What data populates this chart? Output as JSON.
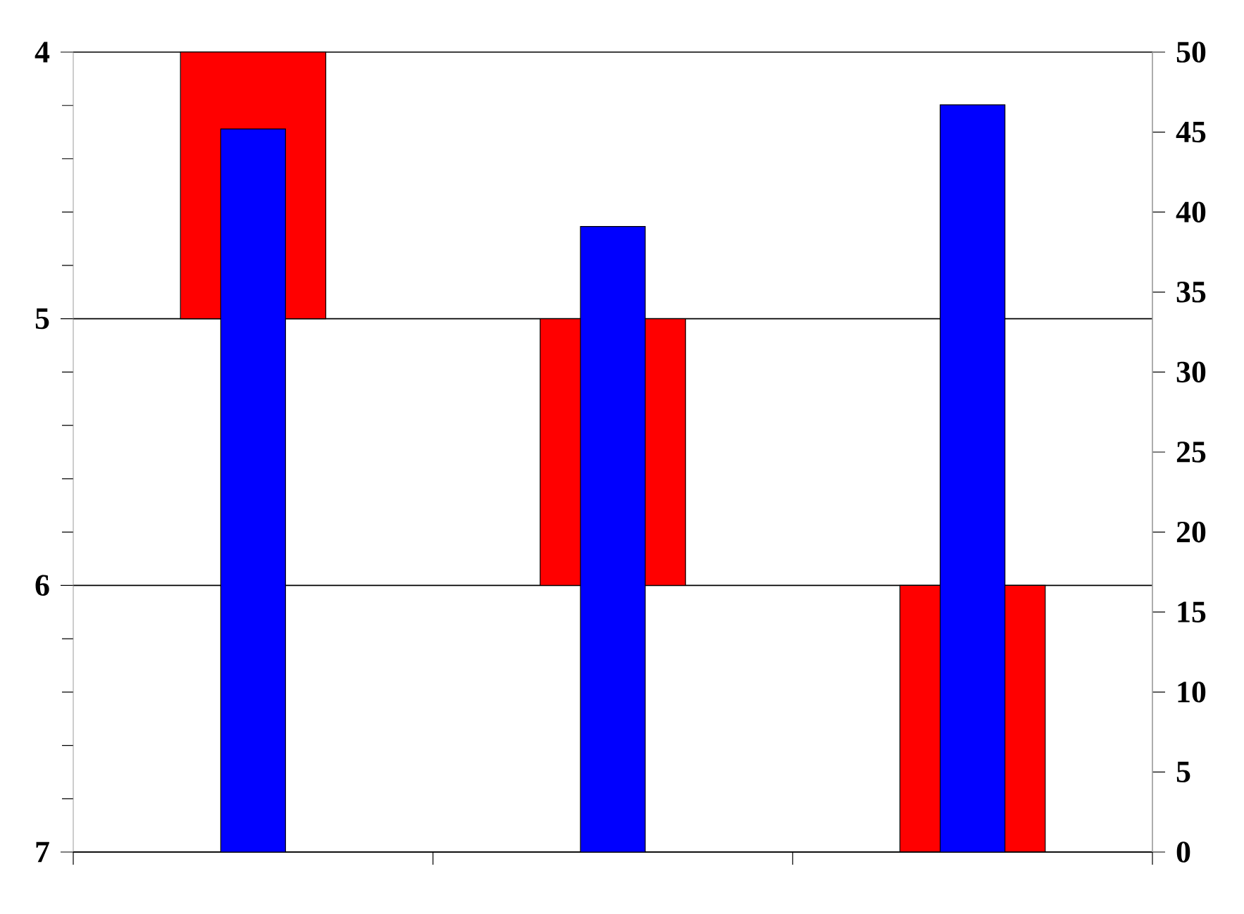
{
  "chart_data": {
    "type": "bar",
    "categories": [
      null,
      null,
      null
    ],
    "series": [
      {
        "color": "#ff0000",
        "values": [
          1,
          1,
          1
        ],
        "base": [
          4,
          5,
          6
        ]
      },
      {
        "color": "#0000ff",
        "values": [
          45.2,
          39.1,
          46.7
        ],
        "axis": "y2"
      }
    ],
    "ylim": [
      7,
      4
    ],
    "yticks": [
      4,
      {
        "value": 4.2,
        "label": null
      },
      {
        "value": 4.4,
        "label": null
      },
      {
        "value": 4.6,
        "label": null
      },
      {
        "value": 4.8,
        "label": null
      },
      5,
      {
        "value": 5.2,
        "label": null
      },
      {
        "value": 5.4,
        "label": null
      },
      {
        "value": 5.6,
        "label": null
      },
      {
        "value": 5.8,
        "label": null
      },
      6,
      {
        "value": 6.2,
        "label": null
      },
      {
        "value": 6.4,
        "label": null
      },
      {
        "value": 6.6,
        "label": null
      },
      {
        "value": 6.8,
        "label": null
      },
      7
    ],
    "y2lim": [
      0,
      50
    ],
    "y2ticks": [
      0,
      5,
      10,
      15,
      20,
      25,
      30,
      35,
      40,
      45,
      50
    ],
    "grid": "y"
  }
}
